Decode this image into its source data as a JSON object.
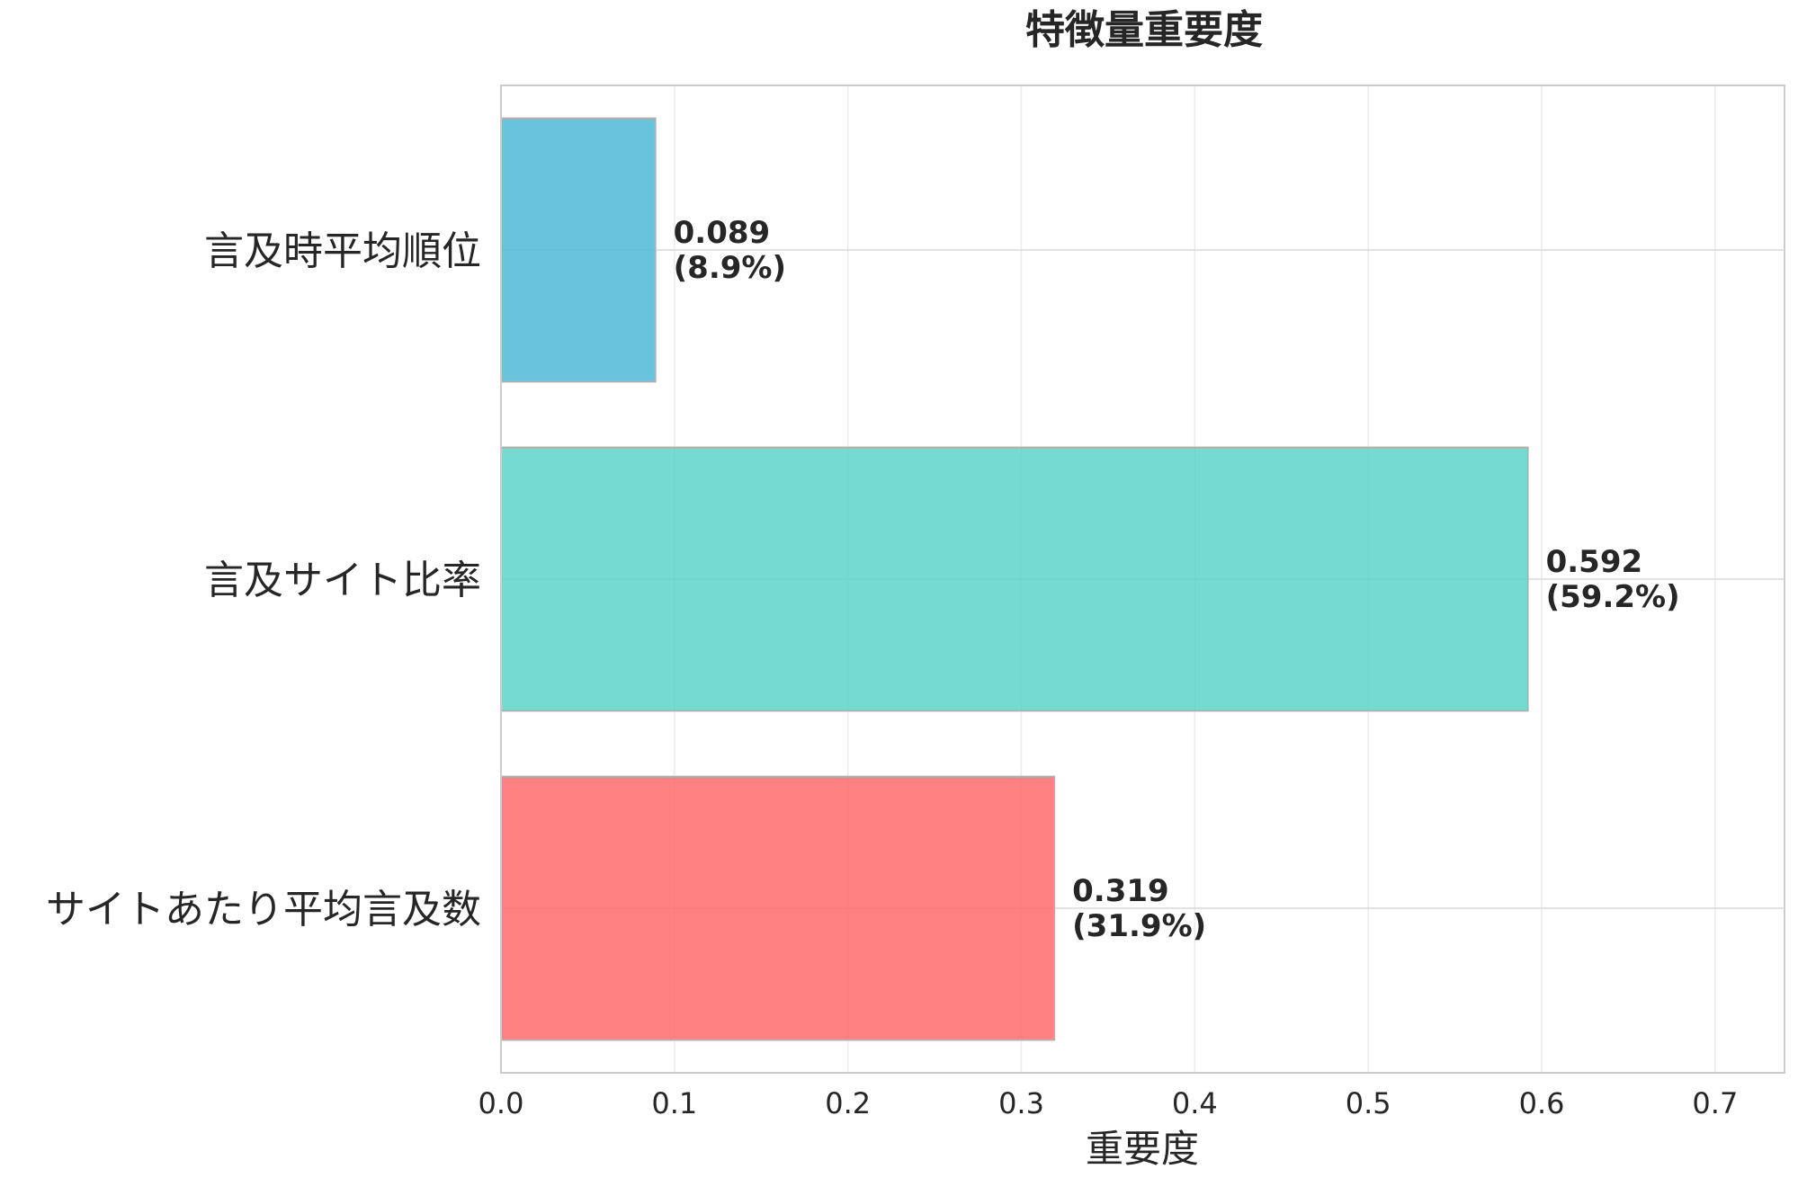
{
  "chart_data": {
    "type": "bar",
    "orientation": "horizontal",
    "title": "特徴量重要度",
    "xlabel": "重要度",
    "ylabel": "",
    "xlim": [
      0,
      0.74
    ],
    "xticks": [
      "0.0",
      "0.1",
      "0.2",
      "0.3",
      "0.4",
      "0.5",
      "0.6",
      "0.7"
    ],
    "grid": true,
    "categories": [
      "言及時平均順位",
      "言及サイト比率",
      "サイトあたり平均言及数"
    ],
    "values": [
      0.089,
      0.592,
      0.319
    ],
    "colors": [
      "#4fb9d6",
      "#5dd4c8",
      "#ff6b6b"
    ],
    "data_labels": [
      {
        "value": "0.089",
        "percent": "(8.9%)"
      },
      {
        "value": "0.592",
        "percent": "(59.2%)"
      },
      {
        "value": "0.319",
        "percent": "(31.9%)"
      }
    ]
  }
}
